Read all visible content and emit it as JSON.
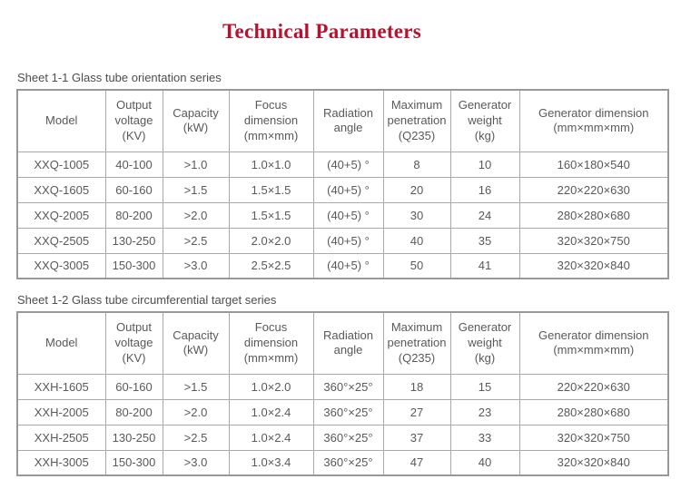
{
  "page": {
    "title": "Technical Parameters"
  },
  "colors": {
    "title_red": "#b5122f",
    "table_text_gray": "#595959",
    "border_gray": "#a9a9a9",
    "background": "#ffffff"
  },
  "tables": [
    {
      "caption": "Sheet 1-1 Glass tube orientation series",
      "headers": [
        "Model",
        "Output\nvoltage\n(KV)",
        "Capacity\n(kW)",
        "Focus\ndimension\n(mm×mm)",
        "Radiation\nangle",
        "Maximum\npenetration\n(Q235)",
        "Generator\nweight\n(kg)",
        "Generator dimension\n(mm×mm×mm)"
      ],
      "rows": [
        [
          "XXQ-1005",
          "40-100",
          ">1.0",
          "1.0×1.0",
          "(40+5) °",
          "8",
          "10",
          "160×180×540"
        ],
        [
          "XXQ-1605",
          "60-160",
          ">1.5",
          "1.5×1.5",
          "(40+5) °",
          "20",
          "16",
          "220×220×630"
        ],
        [
          "XXQ-2005",
          "80-200",
          ">2.0",
          "1.5×1.5",
          "(40+5) °",
          "30",
          "24",
          "280×280×680"
        ],
        [
          "XXQ-2505",
          "130-250",
          ">2.5",
          "2.0×2.0",
          "(40+5) °",
          "40",
          "35",
          "320×320×750"
        ],
        [
          "XXQ-3005",
          "150-300",
          ">3.0",
          "2.5×2.5",
          "(40+5) °",
          "50",
          "41",
          "320×320×840"
        ]
      ]
    },
    {
      "caption": "Sheet 1-2 Glass tube circumferential target series",
      "headers": [
        "Model",
        "Output\nvoltage\n(KV)",
        "Capacity\n(kW)",
        "Focus\ndimension\n(mm×mm)",
        "Radiation\nangle",
        "Maximum\npenetration\n(Q235)",
        "Generator\nweight\n(kg)",
        "Generator dimension\n(mm×mm×mm)"
      ],
      "rows": [
        [
          "XXH-1605",
          "60-160",
          ">1.5",
          "1.0×2.0",
          "360°×25°",
          "18",
          "15",
          "220×220×630"
        ],
        [
          "XXH-2005",
          "80-200",
          ">2.0",
          "1.0×2.4",
          "360°×25°",
          "27",
          "23",
          "280×280×680"
        ],
        [
          "XXH-2505",
          "130-250",
          ">2.5",
          "1.0×2.4",
          "360°×25°",
          "37",
          "33",
          "320×320×750"
        ],
        [
          "XXH-3005",
          "150-300",
          ">3.0",
          "1.0×3.4",
          "360°×25°",
          "47",
          "40",
          "320×320×840"
        ]
      ]
    }
  ]
}
